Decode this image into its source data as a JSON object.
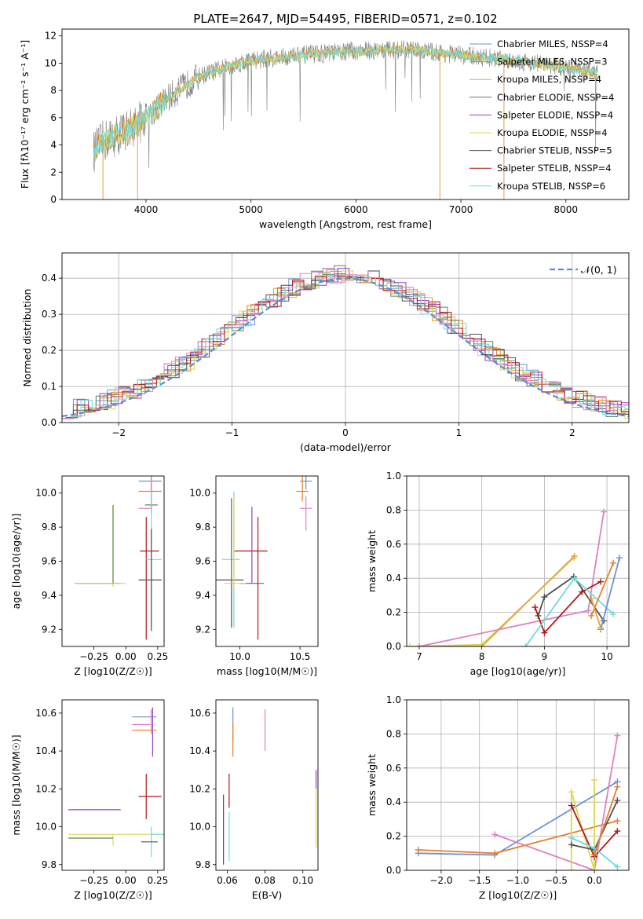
{
  "figure": {
    "colors": {
      "Chabrier MILES": "#6f8fd8",
      "Salpeter MILES": "#e3812b",
      "Kroupa MILES": "#e8a040",
      "Chabrier ELODIE": "#5a8a4a",
      "Salpeter ELODIE": "#9a40c0",
      "Kroupa ELODIE": "#d8d850",
      "Chabrier STELIB": "#505050",
      "Salpeter STELIB": "#b01818",
      "Kroupa STELIB": "#70d8e0",
      "pink": "#e080c0",
      "observed": "#808080",
      "gaussian": "#5b8bd5"
    }
  },
  "chart_data": [
    {
      "id": "spectrum",
      "type": "line",
      "title": "PLATE=2647, MJD=54495, FIBERID=0571, z=0.102",
      "xlabel": "wavelength [Angstrom, rest frame]",
      "ylabel": "Flux [fλ10⁻¹⁷ erg cm⁻² s⁻¹ A⁻¹]",
      "xlim": [
        3200,
        8600
      ],
      "ylim": [
        0,
        12.5
      ],
      "xticks": [
        4000,
        5000,
        6000,
        7000,
        8000
      ],
      "yticks": [
        0,
        2,
        4,
        6,
        8,
        10,
        12
      ],
      "continuum": {
        "x": [
          3500,
          3600,
          3800,
          4000,
          4200,
          4500,
          4800,
          5000,
          5500,
          6000,
          6500,
          7000,
          7400,
          7800,
          8300
        ],
        "y": [
          3.5,
          4.3,
          5.0,
          6.0,
          7.4,
          9.0,
          9.8,
          10.2,
          10.6,
          10.9,
          11.0,
          10.6,
          10.3,
          9.9,
          9.3
        ]
      },
      "legend": [
        {
          "label": "Chabrier MILES, NSSP=4",
          "color": "#6f8fd8"
        },
        {
          "label": "Salpeter MILES, NSSP=3",
          "color": "#e3812b"
        },
        {
          "label": "Kroupa MILES, NSSP=4",
          "color": "#e8a040"
        },
        {
          "label": "Chabrier ELODIE, NSSP=4",
          "color": "#5a8a4a"
        },
        {
          "label": "Salpeter ELODIE, NSSP=4",
          "color": "#9a40c0"
        },
        {
          "label": "Kroupa ELODIE, NSSP=4",
          "color": "#d8d850"
        },
        {
          "label": "Chabrier STELIB, NSSP=5",
          "color": "#505050"
        },
        {
          "label": "Salpeter STELIB, NSSP=4",
          "color": "#b01818"
        },
        {
          "label": "Kroupa STELIB, NSSP=6",
          "color": "#70d8e0"
        }
      ],
      "legend_position": "right"
    },
    {
      "id": "residuals",
      "type": "line",
      "xlabel": "(data-model)/error",
      "ylabel": "Normed distribution",
      "xlim": [
        -2.5,
        2.5
      ],
      "ylim": [
        0,
        0.47
      ],
      "xticks": [
        -2,
        -1,
        0,
        1,
        2
      ],
      "yticks": [
        0.0,
        0.1,
        0.2,
        0.3,
        0.4
      ],
      "grid": true,
      "gaussian_label": "𝒩(0, 1)",
      "legend_position": "top-right"
    },
    {
      "id": "age_vs_Z",
      "type": "scatter",
      "xlabel": "Z [log10(Z/Z☉)]",
      "ylabel": "age  [log10(age/yr)]",
      "xlim": [
        -0.5,
        0.3
      ],
      "ylim": [
        9.1,
        10.1
      ],
      "xticks": [
        -0.25,
        0.0,
        0.25
      ],
      "yticks": [
        9.2,
        9.4,
        9.6,
        9.8,
        10.0
      ],
      "points": [
        {
          "series": "Chabrier MILES",
          "x": 0.2,
          "y": 10.07,
          "xerr": [
            0.1,
            0.08
          ],
          "yerr": [
            0.05,
            0.04
          ]
        },
        {
          "series": "Salpeter MILES",
          "x": 0.2,
          "y": 10.01,
          "xerr": [
            0.1,
            0.08
          ],
          "yerr": [
            0.1,
            0.08
          ]
        },
        {
          "series": "Chabrier ELODIE",
          "x": 0.2,
          "y": 9.93,
          "xerr": [
            0.05,
            0.05
          ],
          "yerr": [
            0.03,
            0.03
          ]
        },
        {
          "series": "pink",
          "x": 0.2,
          "y": 9.91,
          "xerr": [
            0.1,
            0.0
          ],
          "yerr": [
            0.03,
            0.2
          ]
        },
        {
          "series": "Salpeter STELIB",
          "x": 0.16,
          "y": 9.66,
          "xerr": [
            0.05,
            0.1
          ],
          "yerr": [
            0.52,
            0.2
          ]
        },
        {
          "series": "Kroupa STELIB",
          "x": 0.2,
          "y": 9.61,
          "xerr": [
            0.04,
            0.08
          ],
          "yerr": [
            0.4,
            0.4
          ]
        },
        {
          "series": "Chabrier STELIB",
          "x": 0.2,
          "y": 9.49,
          "xerr": [
            0.1,
            0.08
          ],
          "yerr": [
            0.3,
            0.3
          ]
        },
        {
          "series": "Salpeter ELODIE",
          "x": -0.1,
          "y": 9.47,
          "xerr": [
            0.3,
            0.06
          ],
          "yerr": [
            0.0,
            0.0
          ]
        },
        {
          "series": "Kroupa ELODIE",
          "x": -0.1,
          "y": 9.47,
          "xerr": [
            0.3,
            0.1
          ],
          "yerr": [
            0.02,
            0.46
          ]
        },
        {
          "series": "Chabrier ELODIE",
          "x": -0.1,
          "y": 9.47,
          "xerr": [
            0.0,
            0.0
          ],
          "yerr": [
            0.0,
            0.46
          ]
        }
      ]
    },
    {
      "id": "age_vs_mass",
      "type": "scatter",
      "xlabel": "mass [log10(M/M☉)]",
      "ylabel": "",
      "xlim": [
        9.8,
        10.65
      ],
      "ylim": [
        9.1,
        10.1
      ],
      "xticks": [
        10.0,
        10.5
      ],
      "yticks": [
        9.2,
        9.4,
        9.6,
        9.8,
        10.0
      ],
      "points": [
        {
          "series": "Chabrier MILES",
          "x": 10.55,
          "y": 10.07,
          "xerr": [
            0.05,
            0.05
          ],
          "yerr": [
            0.05,
            0.19
          ]
        },
        {
          "series": "Salpeter MILES",
          "x": 10.52,
          "y": 10.01,
          "xerr": [
            0.05,
            0.05
          ],
          "yerr": [
            0.06,
            0.1
          ]
        },
        {
          "series": "pink",
          "x": 10.55,
          "y": 9.91,
          "xerr": [
            0.05,
            0.05
          ],
          "yerr": [
            0.13,
            0.07
          ]
        },
        {
          "series": "Salpeter STELIB",
          "x": 10.15,
          "y": 9.66,
          "xerr": [
            0.2,
            0.08
          ],
          "yerr": [
            0.52,
            0.2
          ]
        },
        {
          "series": "Kroupa STELIB",
          "x": 9.95,
          "y": 9.61,
          "xerr": [
            0.1,
            0.05
          ],
          "yerr": [
            0.4,
            0.4
          ]
        },
        {
          "series": "Chabrier STELIB",
          "x": 9.93,
          "y": 9.49,
          "xerr": [
            0.13,
            0.1
          ],
          "yerr": [
            0.28,
            0.48
          ]
        },
        {
          "series": "Salpeter ELODIE",
          "x": 10.1,
          "y": 9.47,
          "xerr": [
            0.1,
            0.1
          ],
          "yerr": [
            0.0,
            0.45
          ]
        },
        {
          "series": "Kroupa ELODIE",
          "x": 9.95,
          "y": 9.47,
          "xerr": [
            0.08,
            0.1
          ],
          "yerr": [
            0.02,
            0.5
          ]
        },
        {
          "series": "Chabrier ELODIE",
          "x": 9.93,
          "y": 9.47,
          "xerr": [
            0.0,
            0.0
          ],
          "yerr": [
            0.0,
            0.5
          ]
        }
      ]
    },
    {
      "id": "weight_vs_age",
      "type": "line",
      "xlabel": "age  [log10(age/yr)]",
      "ylabel": "mass weight",
      "xlim": [
        6.8,
        10.35
      ],
      "ylim": [
        0,
        1.0
      ],
      "xticks": [
        7,
        8,
        9,
        10
      ],
      "yticks": [
        0.0,
        0.2,
        0.4,
        0.6,
        0.8,
        1.0
      ],
      "grid": true,
      "series": [
        {
          "name": "Kroupa ELODIE",
          "x": [
            6.85,
            8.0,
            9.47
          ],
          "y": [
            0.0,
            0.01,
            0.52
          ]
        },
        {
          "name": "Kroupa MILES",
          "x": [
            7.0,
            8.0,
            9.48
          ],
          "y": [
            0.0,
            0.0,
            0.53
          ]
        },
        {
          "name": "pink",
          "x": [
            7.0,
            9.7,
            9.95
          ],
          "y": [
            0.0,
            0.21,
            0.79
          ]
        },
        {
          "name": "Chabrier STELIB",
          "x": [
            8.9,
            9.0,
            9.47,
            9.95
          ],
          "y": [
            0.18,
            0.29,
            0.41,
            0.15
          ]
        },
        {
          "name": "Salpeter STELIB",
          "x": [
            8.85,
            9.0,
            9.6,
            9.9
          ],
          "y": [
            0.23,
            0.08,
            0.32,
            0.38
          ]
        },
        {
          "name": "Kroupa STELIB",
          "x": [
            8.7,
            9.48,
            10.1
          ],
          "y": [
            0.0,
            0.4,
            0.19
          ]
        },
        {
          "name": "Chabrier MILES",
          "x": [
            9.9,
            10.2
          ],
          "y": [
            0.1,
            0.52
          ]
        },
        {
          "name": "Salpeter MILES",
          "x": [
            9.75,
            10.1
          ],
          "y": [
            0.18,
            0.49
          ]
        },
        {
          "name": "Kroupa MILES",
          "x": [
            9.75,
            9.9
          ],
          "y": [
            0.28,
            0.11
          ]
        }
      ]
    },
    {
      "id": "mass_vs_Z",
      "type": "scatter",
      "xlabel": "Z [log10(Z/Z☉)]",
      "ylabel": "mass [log10(M/M☉)]",
      "xlim": [
        -0.5,
        0.3
      ],
      "ylim": [
        9.77,
        10.67
      ],
      "xticks": [
        -0.25,
        0.0,
        0.25
      ],
      "yticks": [
        9.8,
        10.0,
        10.2,
        10.4,
        10.6
      ],
      "points": [
        {
          "series": "Chabrier MILES",
          "x": 0.2,
          "y": 10.58,
          "xerr": [
            0.15,
            0.04
          ],
          "yerr": [
            0.0,
            0.0
          ]
        },
        {
          "series": "Salpeter ELODIE",
          "x": 0.21,
          "y": 10.55,
          "xerr": [
            0.0,
            0.0
          ],
          "yerr": [
            0.18,
            0.08
          ]
        },
        {
          "series": "pink",
          "x": 0.2,
          "y": 10.54,
          "xerr": [
            0.15,
            0.0
          ],
          "yerr": [
            0.05,
            0.08
          ]
        },
        {
          "series": "Salpeter MILES",
          "x": 0.2,
          "y": 10.51,
          "xerr": [
            0.15,
            0.04
          ],
          "yerr": [
            0.0,
            0.0
          ]
        },
        {
          "series": "Salpeter STELIB",
          "x": 0.16,
          "y": 10.16,
          "xerr": [
            0.06,
            0.12
          ],
          "yerr": [
            0.12,
            0.12
          ]
        },
        {
          "series": "Salpeter ELODIE",
          "x": -0.1,
          "y": 10.09,
          "xerr": [
            0.35,
            0.06
          ],
          "yerr": [
            0.0,
            0.0
          ]
        },
        {
          "series": "Kroupa ELODIE",
          "x": -0.1,
          "y": 9.96,
          "xerr": [
            0.35,
            0.4
          ],
          "yerr": [
            0.06,
            0.0
          ]
        },
        {
          "series": "Kroupa STELIB",
          "x": 0.2,
          "y": 9.96,
          "xerr": [
            0.0,
            0.1
          ],
          "yerr": [
            0.12,
            0.04
          ]
        },
        {
          "series": "Chabrier STELIB",
          "x": 0.2,
          "y": 9.92,
          "xerr": [
            0.08,
            0.05
          ],
          "yerr": [
            0.0,
            0.0
          ]
        },
        {
          "series": "Chabrier ELODIE",
          "x": -0.1,
          "y": 9.94,
          "xerr": [
            0.35,
            0.0
          ],
          "yerr": [
            0.0,
            0.0
          ]
        }
      ]
    },
    {
      "id": "mass_vs_ebv",
      "type": "scatter",
      "xlabel": "E(B-V)",
      "ylabel": "",
      "xlim": [
        0.054,
        0.108
      ],
      "ylim": [
        9.77,
        10.67
      ],
      "xticks": [
        0.06,
        0.08,
        0.1
      ],
      "yticks": [
        9.8,
        10.0,
        10.2,
        10.4,
        10.6
      ],
      "segments": [
        {
          "series": "Chabrier MILES",
          "x": 0.063,
          "y0": 10.45,
          "y1": 10.63
        },
        {
          "series": "Salpeter MILES",
          "x": 0.063,
          "y0": 10.37,
          "y1": 10.55
        },
        {
          "series": "pink",
          "x": 0.08,
          "y0": 10.4,
          "y1": 10.62
        },
        {
          "series": "Salpeter STELIB",
          "x": 0.061,
          "y0": 10.1,
          "y1": 10.28
        },
        {
          "series": "Kroupa STELIB",
          "x": 0.061,
          "y0": 9.82,
          "y1": 10.08
        },
        {
          "series": "Chabrier STELIB",
          "x": 0.058,
          "y0": 9.8,
          "y1": 10.17
        },
        {
          "series": "Salpeter ELODIE",
          "x": 0.107,
          "y0": 10.2,
          "y1": 10.3
        },
        {
          "series": "Kroupa ELODIE",
          "x": 0.107,
          "y0": 9.89,
          "y1": 10.2
        }
      ]
    },
    {
      "id": "weight_vs_Z",
      "type": "line",
      "xlabel": "Z [log10(Z/Z☉)]",
      "ylabel": "mass weight",
      "xlim": [
        -2.45,
        0.45
      ],
      "ylim": [
        0,
        1.0
      ],
      "xticks": [
        -2.0,
        -1.5,
        -1.0,
        -0.5,
        0.0
      ],
      "yticks": [
        0.0,
        0.2,
        0.4,
        0.6,
        0.8,
        1.0
      ],
      "grid": true,
      "series": [
        {
          "name": "Chabrier MILES",
          "x": [
            -2.3,
            -1.3,
            0.3
          ],
          "y": [
            0.1,
            0.09,
            0.52
          ]
        },
        {
          "name": "Salpeter MILES",
          "x": [
            -2.3,
            -1.3,
            0.3
          ],
          "y": [
            0.12,
            0.1,
            0.29
          ]
        },
        {
          "name": "pink",
          "x": [
            -1.3,
            0.0,
            0.3
          ],
          "y": [
            0.21,
            0.0,
            0.79
          ]
        },
        {
          "name": "Kroupa ELODIE",
          "x": [
            -0.3,
            -0.3,
            0.0,
            0.0
          ],
          "y": [
            0.0,
            0.46,
            0.0,
            0.53
          ]
        },
        {
          "name": "Salpeter STELIB",
          "x": [
            -0.3,
            0.0,
            0.3
          ],
          "y": [
            0.38,
            0.08,
            0.23
          ]
        },
        {
          "name": "Chabrier STELIB",
          "x": [
            -0.3,
            0.0,
            0.3
          ],
          "y": [
            0.15,
            0.12,
            0.41
          ]
        },
        {
          "name": "Kroupa STELIB",
          "x": [
            -0.3,
            0.0,
            0.3
          ],
          "y": [
            0.19,
            0.13,
            0.02
          ]
        },
        {
          "name": "Salpeter MILES",
          "x": [
            0.0,
            0.3
          ],
          "y": [
            0.09,
            0.49
          ]
        }
      ]
    }
  ]
}
